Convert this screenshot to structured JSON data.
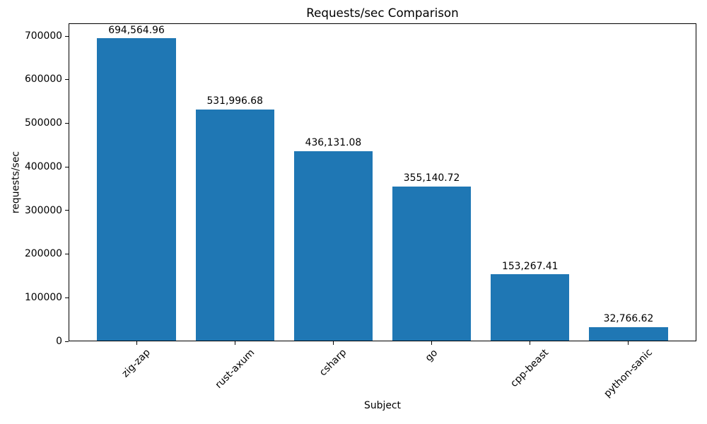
{
  "chart_data": {
    "type": "bar",
    "title": "Requests/sec Comparison",
    "xlabel": "Subject",
    "ylabel": "requests/sec",
    "categories": [
      "zig-zap",
      "rust-axum",
      "csharp",
      "go",
      "cpp-beast",
      "python-sanic"
    ],
    "values": [
      694564.96,
      531996.68,
      436131.08,
      355140.72,
      153267.41,
      32766.62
    ],
    "value_labels": [
      "694,564.96",
      "531,996.68",
      "436,131.08",
      "355,140.72",
      "153,267.41",
      "32,766.62"
    ],
    "yticks": [
      0,
      100000,
      200000,
      300000,
      400000,
      500000,
      600000,
      700000
    ],
    "ytick_labels": [
      "0",
      "100000",
      "200000",
      "300000",
      "400000",
      "500000",
      "600000",
      "700000"
    ],
    "ylim": [
      0,
      729293
    ],
    "xlim": [
      -0.69,
      5.69
    ],
    "bar_width_units": 0.8,
    "bar_color": "#1f77b4",
    "axis_color": "#000000",
    "grid": false,
    "legend_position": "none",
    "x_tick_label_rotation": 45
  }
}
